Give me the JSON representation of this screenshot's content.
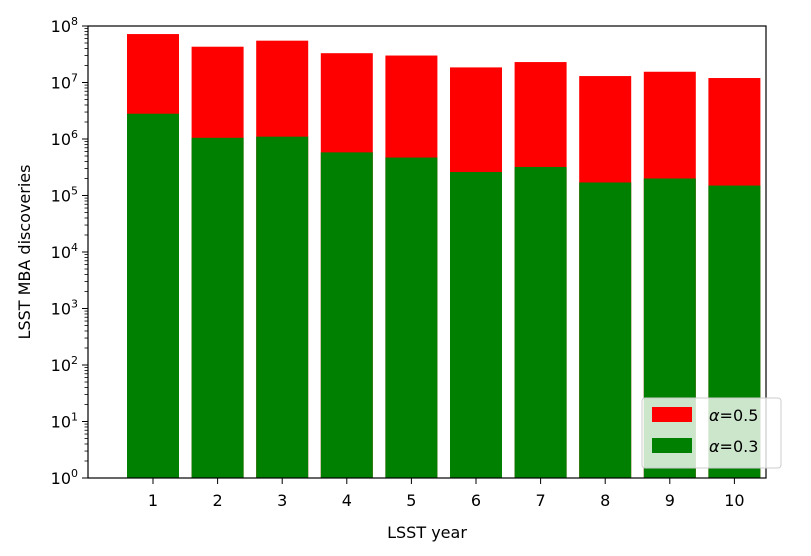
{
  "chart_data": {
    "type": "bar",
    "scale_y": "log",
    "categories": [
      "1",
      "2",
      "3",
      "4",
      "5",
      "6",
      "7",
      "8",
      "9",
      "10"
    ],
    "series": [
      {
        "name": "α=0.5",
        "legend_symbol": "α",
        "legend_value": "=0.5",
        "color": "#ff0000",
        "values": [
          72000000,
          43000000,
          55000000,
          33000000,
          30000000,
          18500000,
          23000000,
          13000000,
          15500000,
          12000000
        ]
      },
      {
        "name": "α=0.3",
        "legend_symbol": "α",
        "legend_value": "=0.3",
        "color": "#008000",
        "values": [
          2800000,
          1050000,
          1100000,
          580000,
          470000,
          260000,
          320000,
          170000,
          200000,
          150000
        ]
      }
    ],
    "xlabel": "LSST year",
    "ylabel": "LSST MBA discoveries",
    "ylim": [
      1,
      100000000
    ],
    "y_ticks": [
      {
        "value": 1,
        "base": "10",
        "exp": "0"
      },
      {
        "value": 10,
        "base": "10",
        "exp": "1"
      },
      {
        "value": 100,
        "base": "10",
        "exp": "2"
      },
      {
        "value": 1000,
        "base": "10",
        "exp": "3"
      },
      {
        "value": 10000,
        "base": "10",
        "exp": "4"
      },
      {
        "value": 100000,
        "base": "10",
        "exp": "5"
      },
      {
        "value": 1000000,
        "base": "10",
        "exp": "6"
      },
      {
        "value": 10000000,
        "base": "10",
        "exp": "7"
      },
      {
        "value": 100000000,
        "base": "10",
        "exp": "8"
      }
    ],
    "legend_position": "lower right",
    "grid": false
  }
}
